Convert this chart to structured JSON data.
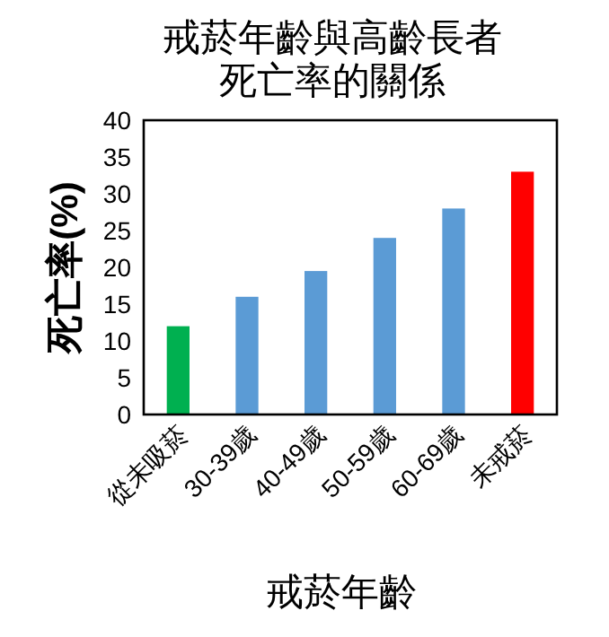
{
  "chart_data": {
    "type": "bar",
    "title": "戒菸年齡與高齡長者",
    "subtitle": "死亡率的關係",
    "xlabel": "戒菸年齡",
    "ylabel": "死亡率(%)",
    "categories": [
      "從未吸菸",
      "30-39歲",
      "40-49歲",
      "50-59歲",
      "60-69歲",
      "未戒菸"
    ],
    "values": [
      12,
      16,
      19.5,
      24,
      28,
      33
    ],
    "colors": [
      "#00b050",
      "#5b9bd5",
      "#5b9bd5",
      "#5b9bd5",
      "#5b9bd5",
      "#ff0000"
    ],
    "ylim": [
      0,
      40
    ],
    "yticks": [
      0,
      5,
      10,
      15,
      20,
      25,
      30,
      35,
      40
    ],
    "grid": false
  }
}
